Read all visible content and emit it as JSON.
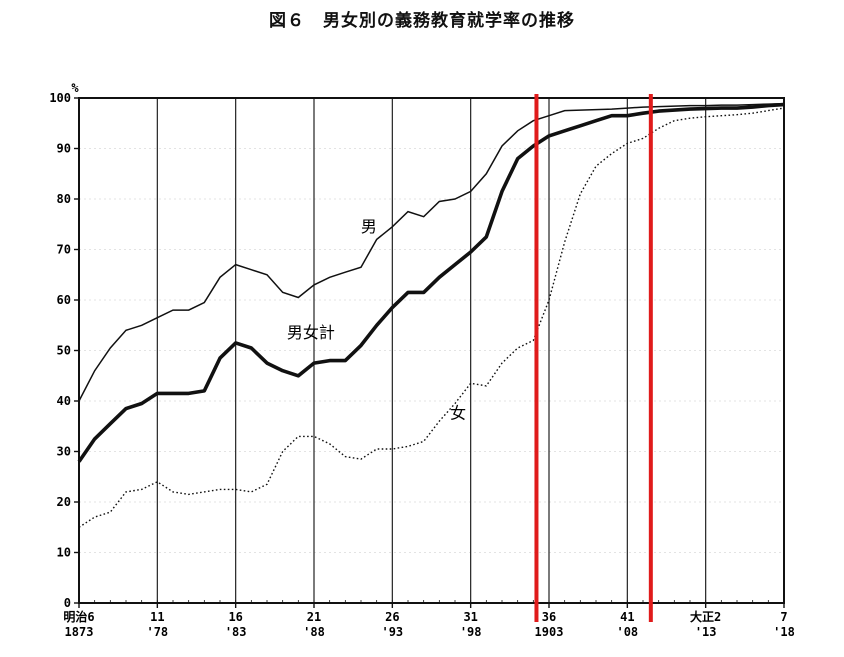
{
  "chart_data": {
    "type": "line",
    "title": "図６　男女別の義務教育就学率の推移",
    "ylabel": "%",
    "xlabel": "",
    "ylim": [
      0,
      100
    ],
    "xlim": [
      1873,
      1918
    ],
    "yticks": [
      "0",
      "10",
      "20",
      "30",
      "40",
      "50",
      "60",
      "70",
      "80",
      "90",
      "100"
    ],
    "xticks": [
      {
        "year": 1873,
        "top": "明治6",
        "bottom": "1873"
      },
      {
        "year": 1878,
        "top": "11",
        "bottom": "'78"
      },
      {
        "year": 1883,
        "top": "16",
        "bottom": "'83"
      },
      {
        "year": 1888,
        "top": "21",
        "bottom": "'88"
      },
      {
        "year": 1893,
        "top": "26",
        "bottom": "'93"
      },
      {
        "year": 1898,
        "top": "31",
        "bottom": "'98"
      },
      {
        "year": 1903,
        "top": "36",
        "bottom": "1903"
      },
      {
        "year": 1908,
        "top": "41",
        "bottom": "'08"
      },
      {
        "year": 1913,
        "top": "大正2",
        "bottom": "'13"
      },
      {
        "year": 1918,
        "top": "7",
        "bottom": "'18"
      }
    ],
    "grid": "vertical",
    "highlight_lines": {
      "color": "#e01b1b",
      "x": [
        1902.2,
        1909.5
      ]
    },
    "series": [
      {
        "name": "男",
        "style": "thin",
        "x": [
          1873,
          1874,
          1875,
          1876,
          1877,
          1878,
          1879,
          1880,
          1881,
          1882,
          1883,
          1884,
          1885,
          1886,
          1887,
          1888,
          1889,
          1890,
          1891,
          1892,
          1893,
          1894,
          1895,
          1896,
          1897,
          1898,
          1899,
          1900,
          1901,
          1902,
          1903,
          1904,
          1905,
          1906,
          1907,
          1908,
          1909,
          1910,
          1911,
          1912,
          1913,
          1914,
          1915,
          1916,
          1917,
          1918
        ],
        "values": [
          40,
          46,
          50.5,
          54,
          55,
          56.5,
          58,
          58,
          59.5,
          64.5,
          67,
          66,
          65,
          61.5,
          60.5,
          63,
          64.5,
          65.5,
          66.5,
          72,
          74.5,
          77.5,
          76.5,
          79.5,
          80,
          81.5,
          85,
          90.5,
          93.5,
          95.5,
          96.5,
          97.5,
          97.6,
          97.7,
          97.8,
          98,
          98.2,
          98.3,
          98.4,
          98.5,
          98.5,
          98.6,
          98.6,
          98.7,
          98.8,
          98.9
        ]
      },
      {
        "name": "男女計",
        "style": "bold",
        "x": [
          1873,
          1874,
          1875,
          1876,
          1877,
          1878,
          1879,
          1880,
          1881,
          1882,
          1883,
          1884,
          1885,
          1886,
          1887,
          1888,
          1889,
          1890,
          1891,
          1892,
          1893,
          1894,
          1895,
          1896,
          1897,
          1898,
          1899,
          1900,
          1901,
          1902,
          1903,
          1904,
          1905,
          1906,
          1907,
          1908,
          1909,
          1910,
          1911,
          1912,
          1913,
          1914,
          1915,
          1916,
          1917,
          1918
        ],
        "values": [
          28,
          32.5,
          35.5,
          38.5,
          39.5,
          41.5,
          41.5,
          41.5,
          42,
          48.5,
          51.5,
          50.5,
          47.5,
          46,
          45,
          47.5,
          48,
          48,
          51,
          55,
          58.5,
          61.5,
          61.5,
          64.5,
          67,
          69.5,
          72.5,
          81.5,
          88,
          90.5,
          92.5,
          93.5,
          94.5,
          95.5,
          96.5,
          96.5,
          97,
          97.4,
          97.6,
          97.8,
          97.9,
          98,
          98,
          98.2,
          98.5,
          98.7
        ]
      },
      {
        "name": "女",
        "style": "dotted",
        "x": [
          1873,
          1874,
          1875,
          1876,
          1877,
          1878,
          1879,
          1880,
          1881,
          1882,
          1883,
          1884,
          1885,
          1886,
          1887,
          1888,
          1889,
          1890,
          1891,
          1892,
          1893,
          1894,
          1895,
          1896,
          1897,
          1898,
          1899,
          1900,
          1901,
          1902,
          1903,
          1904,
          1905,
          1906,
          1907,
          1908,
          1909,
          1910,
          1911,
          1912,
          1913,
          1914,
          1915,
          1916,
          1917,
          1918
        ],
        "values": [
          15,
          17,
          18,
          22,
          22.5,
          24,
          22,
          21.5,
          22,
          22.5,
          22.5,
          22,
          23.5,
          30,
          33,
          33,
          31.5,
          29,
          28.5,
          30.5,
          30.5,
          31,
          32,
          36,
          39.5,
          43.5,
          43,
          47.5,
          50.5,
          52,
          60,
          71.5,
          81,
          86.5,
          89,
          91,
          92,
          94,
          95.5,
          96,
          96.3,
          96.5,
          96.7,
          97,
          97.5,
          98
        ]
      }
    ]
  }
}
